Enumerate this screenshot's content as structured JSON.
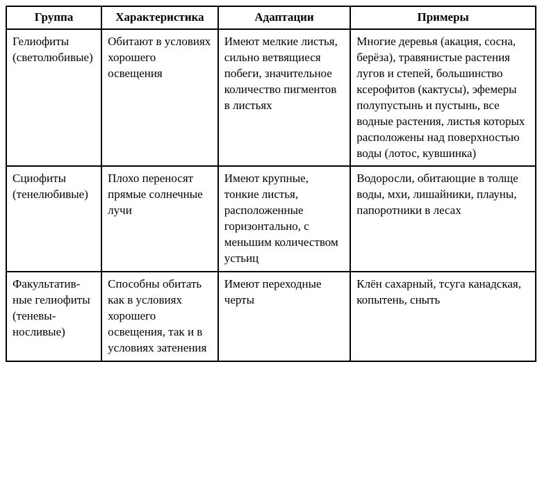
{
  "table": {
    "type": "table",
    "border_color": "#000000",
    "border_width": 2,
    "background_color": "#ffffff",
    "font_family": "Times New Roman",
    "header_fontsize": 17,
    "cell_fontsize": 17,
    "text_color": "#000000",
    "columns": [
      {
        "key": "group",
        "label": "Группа",
        "width_pct": 18
      },
      {
        "key": "char",
        "label": "Характеристика",
        "width_pct": 22
      },
      {
        "key": "adapt",
        "label": "Адаптации",
        "width_pct": 25
      },
      {
        "key": "examples",
        "label": "Примеры",
        "width_pct": 35
      }
    ],
    "rows": [
      {
        "group": "Гелиофиты (светолюби­вые)",
        "char": "Обитают в усло­виях хорошего освещения",
        "adapt": "Имеют мелкие ли­стья, сильно вет­вящиеся побеги, значительное ко­личество пигмен­тов в листьях",
        "examples": "Многие деревья (ака­ция, сосна, берёза), травянистые растения лугов и степей, боль­шинство ксерофитов (кактусы), эфемеры по­лупустынь и пустынь, все водные растения, листья которых распо­ложены над поверхно­стью воды (лотос, кув­шинка)"
      },
      {
        "group": "Сциофиты (тенелюби­вые)",
        "char": "Плохо перено­сят прямые сол­нечные лучи",
        "adapt": "Имеют крупные, тонкие листья, расположенные горизонтально, с меньшим коли­чеством устьиц",
        "examples": "Водоросли, обитающие в толще воды, мхи, ли­шайники, плауны, па­поротники в лесах"
      },
      {
        "group": "Факультатив­ные гелиофи­ты (теневы­носливые)",
        "char": "Способны оби­тать как в усло­виях хорошего освещения, так и в условиях за­тенения",
        "adapt": "Имеют переход­ные черты",
        "examples": "Клён сахарный, тсуга канадская, копытень, сныть"
      }
    ]
  }
}
